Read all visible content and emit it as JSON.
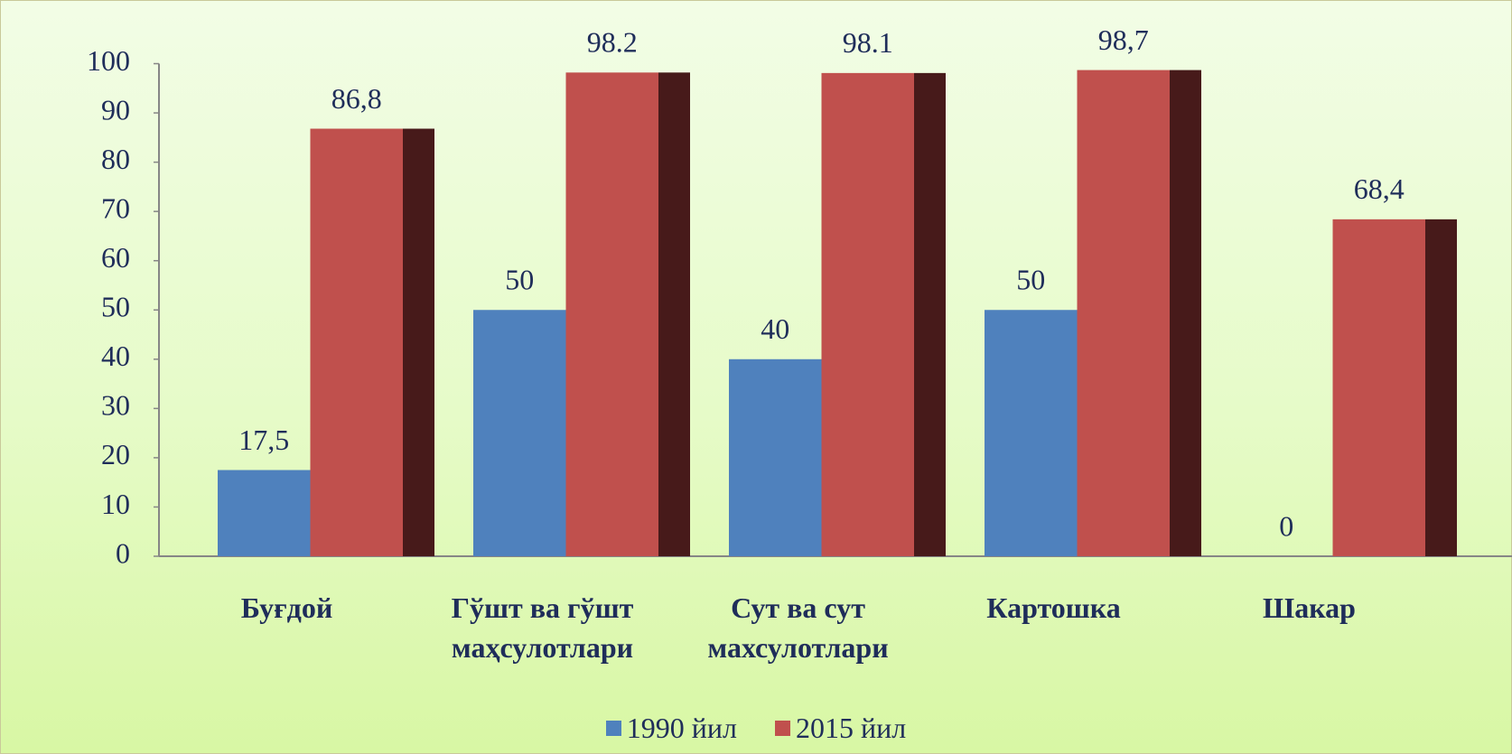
{
  "chart_data": {
    "type": "bar",
    "categories": [
      "Буғдой",
      "Гўшт ва гўшт маҳсулотлари",
      "Сут ва сут махсулотлари",
      "Картошка",
      "Шакар"
    ],
    "series": [
      {
        "name": "1990 йил",
        "color": "#4f81bd",
        "values": [
          17.5,
          50,
          40,
          50,
          0
        ],
        "value_labels": [
          "17,5",
          "50",
          "40",
          "50",
          "0"
        ]
      },
      {
        "name": "2015 йил",
        "color": "#c0504d",
        "values": [
          86.8,
          98.2,
          98.1,
          98.7,
          68.4
        ],
        "value_labels": [
          "86,8",
          "98.2",
          "98.1",
          "98,7",
          "68,4"
        ]
      }
    ],
    "ylim": [
      0,
      100
    ],
    "yticks": [
      0,
      10,
      20,
      30,
      40,
      50,
      60,
      70,
      80,
      90,
      100
    ],
    "grid": false
  }
}
